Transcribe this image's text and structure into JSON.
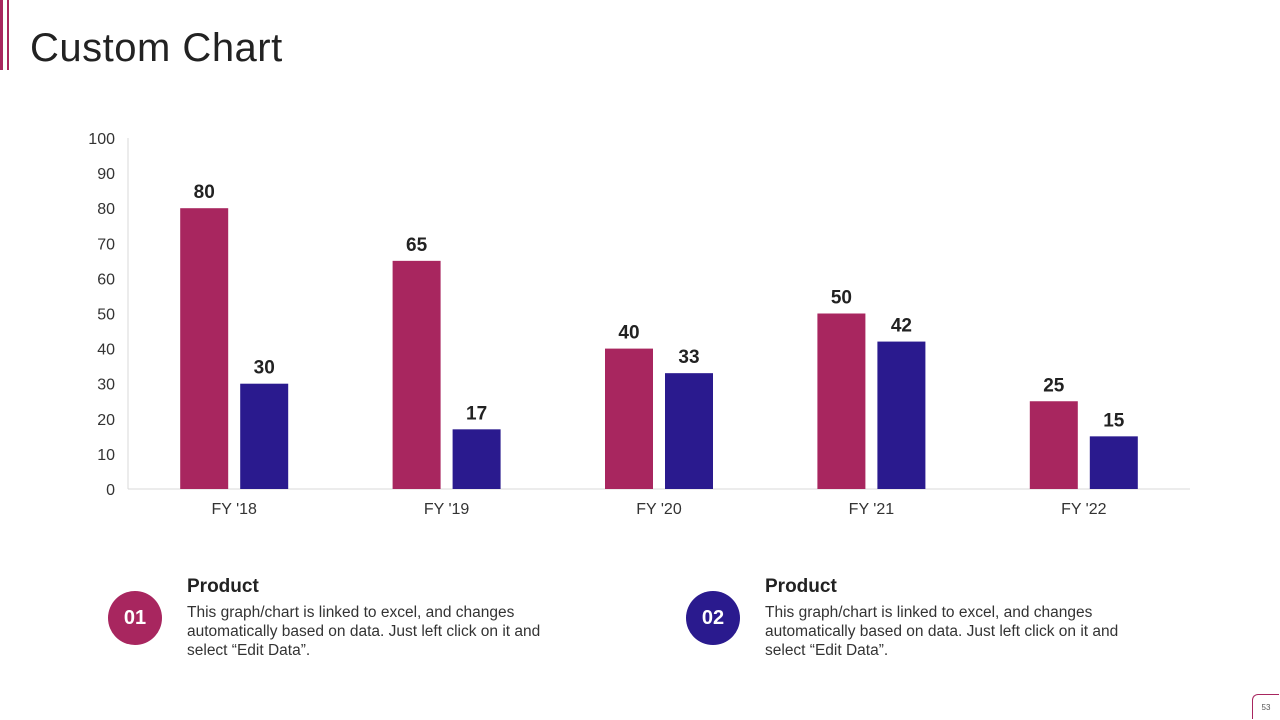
{
  "slide": {
    "title": "Custom Chart",
    "page_number": "53"
  },
  "colors": {
    "accent": "#a8265f",
    "series1": "#a8265f",
    "series2": "#2a1a8e",
    "axis_text": "#333333",
    "label_text": "#222222"
  },
  "chart_data": {
    "type": "bar",
    "title": "",
    "xlabel": "",
    "ylabel": "",
    "categories": [
      "FY '18",
      "FY '19",
      "FY '20",
      "FY '21",
      "FY '22"
    ],
    "series": [
      {
        "name": "Product 01",
        "values": [
          80,
          65,
          40,
          50,
          25
        ]
      },
      {
        "name": "Product 02",
        "values": [
          30,
          17,
          33,
          42,
          15
        ]
      }
    ],
    "ylim": [
      0,
      100
    ],
    "yticks": [
      0,
      10,
      20,
      30,
      40,
      50,
      60,
      70,
      80,
      90,
      100
    ],
    "grid": false,
    "legend": "none",
    "data_labels": true
  },
  "info_boxes": [
    {
      "number": "01",
      "title": "Product",
      "body": "This graph/chart is linked to excel, and changes automatically based on data. Just left click on it and select “Edit Data”."
    },
    {
      "number": "02",
      "title": "Product",
      "body": "This graph/chart is linked to excel, and changes automatically based on data. Just left click on it and select “Edit Data”."
    }
  ]
}
